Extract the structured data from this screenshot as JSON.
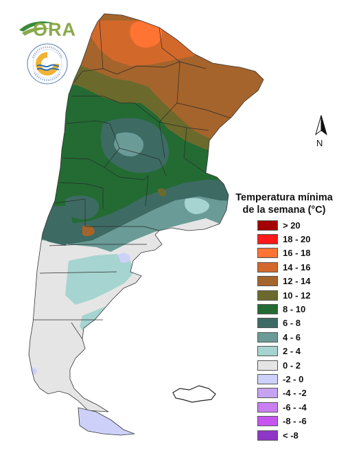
{
  "logo": {
    "brand_text": "ORA",
    "seal_text": "SERVICIO METEOROLÓGICO NACIONAL · ARGENTINA"
  },
  "north_arrow": {
    "label": "N"
  },
  "legend": {
    "title_line1": "Temperatura mínima",
    "title_line2": "de la semana (°C)",
    "items": [
      {
        "label": "> 20",
        "color": "#a30000"
      },
      {
        "label": "18 - 20",
        "color": "#ff1a1a"
      },
      {
        "label": "16 - 18",
        "color": "#ff7333"
      },
      {
        "label": "14 - 16",
        "color": "#d2692b"
      },
      {
        "label": "12 - 14",
        "color": "#a5642c"
      },
      {
        "label": "10 - 12",
        "color": "#6b6a2c"
      },
      {
        "label": "8 - 10",
        "color": "#236b33"
      },
      {
        "label": "6 - 8",
        "color": "#3d6b63"
      },
      {
        "label": "4 - 6",
        "color": "#6a9b96"
      },
      {
        "label": "2 - 4",
        "color": "#a6d4d0"
      },
      {
        "label": "0 - 2",
        "color": "#e5e5e5"
      },
      {
        "label": "-2 - 0",
        "color": "#cdd1fa"
      },
      {
        "label": "-4 - -2",
        "color": "#c6a3f2"
      },
      {
        "label": "-6 - -4",
        "color": "#c97ff2"
      },
      {
        "label": "-8 - -6",
        "color": "#c655f0"
      },
      {
        "label": "< -8",
        "color": "#8f36c6"
      }
    ]
  }
}
